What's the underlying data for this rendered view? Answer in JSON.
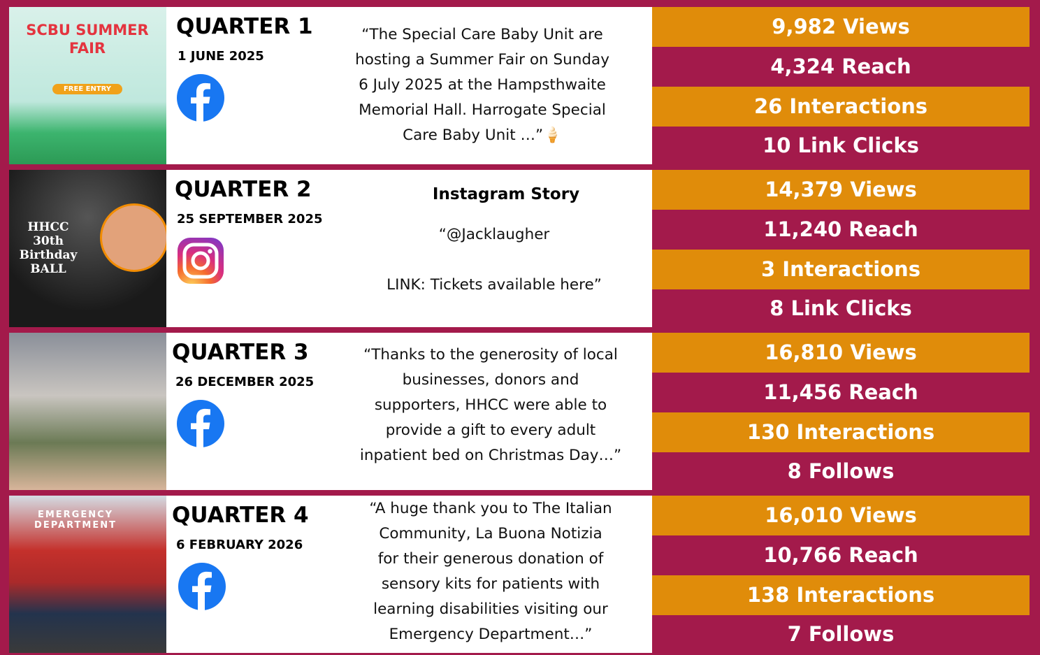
{
  "rows": [
    {
      "quarter": "QUARTER 1",
      "date": "1 JUNE 2025",
      "thumbnail": {
        "headline": "SCBU SUMMER FAIR",
        "badge": "FREE ENTRY"
      },
      "caption": [
        "“The Special Care Baby Unit are",
        "hosting a Summer Fair on Sunday",
        "6 July 2025 at the Hampsthwaite",
        "Memorial Hall. Harrogate Special",
        "Care Baby Unit …”🍦"
      ],
      "stats": [
        "9,982 Views",
        "4,324 Reach",
        "26 Interactions",
        "10 Link Clicks"
      ]
    },
    {
      "quarter": "QUARTER 2",
      "date": "25 SEPTEMBER 2025",
      "thumbnail": {
        "headline": "HHCC 30th Birthday BALL"
      },
      "heading": "Instagram Story",
      "caption": [
        "“@Jacklaugher",
        "LINK: Tickets available here”"
      ],
      "stats": [
        "14,379 Views",
        "11,240 Reach",
        "3 Interactions",
        "8 Link Clicks"
      ]
    },
    {
      "quarter": "QUARTER 3",
      "date": "26 DECEMBER 2025",
      "caption": [
        "“Thanks to the generosity of local",
        "businesses, donors and",
        "supporters, HHCC were able to",
        "provide a gift to every adult",
        "inpatient bed on Christmas Day…”"
      ],
      "stats": [
        "16,810 Views",
        "11,456 Reach",
        "130 Interactions",
        "8 Follows"
      ]
    },
    {
      "quarter": "QUARTER 4",
      "date": "6 FEBRUARY 2026",
      "thumbnail": {
        "headline": "EMERGENCY DEPARTMENT"
      },
      "caption": [
        "“A huge thank you to The Italian",
        "Community, La Buona Notizia",
        "for their generous donation of",
        "sensory kits for patients with",
        "learning disabilities visiting our",
        "Emergency Department…”"
      ],
      "stats": [
        "16,010 Views",
        "10,766 Reach",
        "138 Interactions",
        "7 Follows"
      ]
    }
  ]
}
